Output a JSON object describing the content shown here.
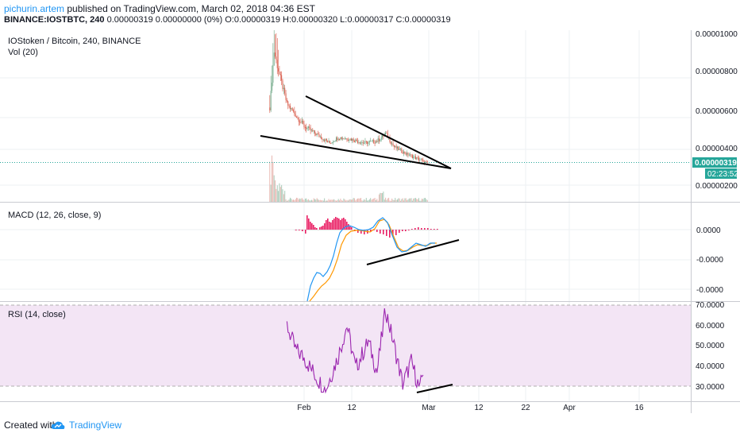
{
  "header": {
    "author": "pichurin.artem",
    "published_text": "published on TradingView.com, March 02, 2018 04:36 EST",
    "symbol": "BINANCE:IOSTBTC, 240",
    "quote_text": "0.00000319 0.00000000 (0%) O:0.00000319 H:0.00000320 L:0.00000317 C:0.00000319"
  },
  "footer": {
    "created_with": "Created with",
    "brand": "TradingView",
    "logo_icon": "tradingview-cloud-icon"
  },
  "colors": {
    "up_candle": "#6ba583",
    "down_candle": "#d75442",
    "volume": "#c8c8c8",
    "macd_line": "#2196f3",
    "signal_line": "#ff9800",
    "histogram": "#e91e63",
    "rsi_line": "#9c27b0",
    "rsi_band": "#f3e5f5",
    "last_price": "#26a69a",
    "trendline": "#000000"
  },
  "chart_data": [
    {
      "type": "candlestick",
      "title": "IOStoken / Bitcoin, 240, BINANCE",
      "subtitle": "Vol (20)",
      "x_tick_labels": [
        "Feb",
        "12",
        "Mar",
        "12",
        "22",
        "Apr",
        "16"
      ],
      "y_tick_labels": [
        "0.00001000",
        "0.00000800",
        "0.00000600",
        "0.00000400",
        "0.00000200"
      ],
      "y_ticks": [
        1e-05,
        8e-06,
        6e-06,
        4e-06,
        2e-06
      ],
      "ylim": [
        1.7e-06,
        1.03e-05
      ],
      "last_price": 3.19e-06,
      "last_price_label": "0.00000319",
      "countdown_label": "02:23:52",
      "series_close_approx": [
        {
          "date": "2018-01-24",
          "value": 6.2e-06
        },
        {
          "date": "2018-01-25",
          "value": 9.2e-06
        },
        {
          "date": "2018-01-26",
          "value": 8.2e-06
        },
        {
          "date": "2018-01-28",
          "value": 6.4e-06
        },
        {
          "date": "2018-01-30",
          "value": 5.8e-06
        },
        {
          "date": "2018-02-01",
          "value": 5.2e-06
        },
        {
          "date": "2018-02-03",
          "value": 4.9e-06
        },
        {
          "date": "2018-02-05",
          "value": 4.6e-06
        },
        {
          "date": "2018-02-07",
          "value": 4.3e-06
        },
        {
          "date": "2018-02-09",
          "value": 4.6e-06
        },
        {
          "date": "2018-02-12",
          "value": 4.5e-06
        },
        {
          "date": "2018-02-15",
          "value": 4.3e-06
        },
        {
          "date": "2018-02-18",
          "value": 4.4e-06
        },
        {
          "date": "2018-02-20",
          "value": 4.8e-06
        },
        {
          "date": "2018-02-22",
          "value": 4.1e-06
        },
        {
          "date": "2018-02-25",
          "value": 3.7e-06
        },
        {
          "date": "2018-02-28",
          "value": 3.4e-06
        },
        {
          "date": "2018-03-02",
          "value": 3.19e-06
        }
      ],
      "trendlines": "falling wedge drawn from late January to early March"
    },
    {
      "type": "line",
      "title": "MACD (12, 26, close, 9)",
      "y_tick_labels": [
        "0.0000",
        "-0.0000",
        "-0.0000"
      ],
      "series": [
        {
          "name": "MACD",
          "shape": "rises from deep negative in early February, crosses near zero mid-February, dips and recovers to slightly negative"
        },
        {
          "name": "Signal",
          "shape": "lagging MACD"
        },
        {
          "name": "Histogram",
          "shape": "bars around the zero line"
        }
      ],
      "trendline": "rising line under MACD lows late February"
    },
    {
      "type": "line",
      "title": "RSI (14, close)",
      "y_tick_labels": [
        "70.0000",
        "60.0000",
        "50.0000",
        "40.0000",
        "30.0000"
      ],
      "y_ticks": [
        70,
        60,
        50,
        40,
        30
      ],
      "ylim": [
        26,
        71
      ],
      "band": [
        30,
        70
      ],
      "series_approx": [
        {
          "date": "2018-01-28",
          "value": 60
        },
        {
          "date": "2018-01-30",
          "value": 48
        },
        {
          "date": "2018-02-01",
          "value": 44
        },
        {
          "date": "2018-02-04",
          "value": 34
        },
        {
          "date": "2018-02-06",
          "value": 28
        },
        {
          "date": "2018-02-09",
          "value": 45
        },
        {
          "date": "2018-02-11",
          "value": 60
        },
        {
          "date": "2018-02-13",
          "value": 39
        },
        {
          "date": "2018-02-16",
          "value": 52
        },
        {
          "date": "2018-02-18",
          "value": 37
        },
        {
          "date": "2018-02-20",
          "value": 68
        },
        {
          "date": "2018-02-22",
          "value": 50
        },
        {
          "date": "2018-02-24",
          "value": 31
        },
        {
          "date": "2018-02-26",
          "value": 42
        },
        {
          "date": "2018-02-28",
          "value": 28
        },
        {
          "date": "2018-03-01",
          "value": 41
        }
      ],
      "trendline": "rising line under RSI lows late February"
    }
  ]
}
